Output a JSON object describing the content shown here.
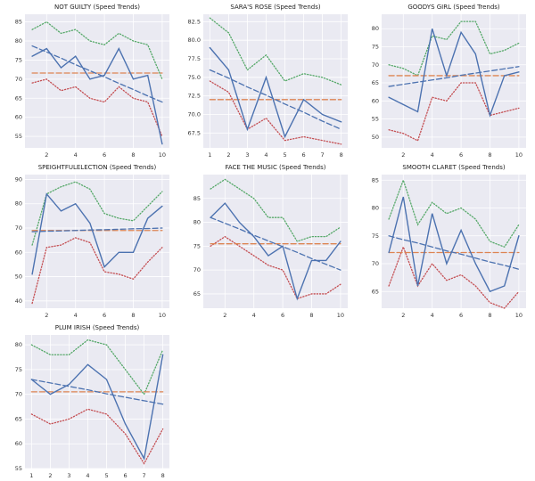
{
  "chart_data": [
    {
      "type": "line",
      "title": "NOT GUILTY (Speed Trends)",
      "x": [
        1,
        2,
        3,
        4,
        5,
        6,
        7,
        8,
        9,
        10
      ],
      "xlim": [
        0.5,
        10.5
      ],
      "ylim": [
        52,
        87
      ],
      "xticks": [
        2,
        4,
        6,
        8,
        10
      ],
      "yticks": [
        55,
        60,
        65,
        70,
        75,
        80,
        85
      ],
      "grid": true,
      "series": [
        {
          "color": "#55a868",
          "style": "dotted",
          "values": [
            83,
            85,
            82,
            83,
            80,
            79,
            82,
            80,
            79,
            70
          ]
        },
        {
          "color": "#c44e52",
          "style": "dotted",
          "values": [
            69,
            70,
            67,
            68,
            65,
            64,
            68,
            65,
            64,
            55
          ]
        },
        {
          "color": "#dd8452",
          "style": "dashed",
          "values": [
            71.6,
            71.6,
            71.6,
            71.6,
            71.6,
            71.6,
            71.6,
            71.6,
            71.6,
            71.6
          ]
        },
        {
          "color": "#4c72b0",
          "style": "dashed",
          "values": [
            78.7,
            77.1,
            75.5,
            73.8,
            72.2,
            70.6,
            68.9,
            67.3,
            65.6,
            64
          ]
        },
        {
          "color": "#4c72b0",
          "style": "solid",
          "values": [
            76,
            78,
            73,
            76,
            70,
            71,
            78,
            70,
            71,
            53
          ]
        }
      ]
    },
    {
      "type": "line",
      "title": "SARA'S ROSE (Speed Trends)",
      "x": [
        1,
        2,
        3,
        4,
        5,
        6,
        7,
        8
      ],
      "xlim": [
        0.65,
        8.35
      ],
      "ylim": [
        65.5,
        83.5
      ],
      "xticks": [
        1,
        2,
        3,
        4,
        5,
        6,
        7,
        8
      ],
      "yticks": [
        67.5,
        {
          "value": 70,
          "label": "70.0"
        },
        72.5,
        {
          "value": 75,
          "label": "75.0"
        },
        77.5,
        {
          "value": 80,
          "label": "80.0"
        },
        82.5
      ],
      "grid": true,
      "series": [
        {
          "color": "#55a868",
          "style": "dotted",
          "values": [
            83,
            81,
            76,
            78,
            74.5,
            75.5,
            75,
            74
          ]
        },
        {
          "color": "#c44e52",
          "style": "dotted",
          "values": [
            74.5,
            73,
            68,
            69.5,
            66.5,
            67,
            66.5,
            66
          ]
        },
        {
          "color": "#dd8452",
          "style": "dashed",
          "values": [
            72,
            72,
            72,
            72,
            72,
            72,
            72,
            72
          ]
        },
        {
          "color": "#4c72b0",
          "style": "dashed",
          "values": [
            76,
            74.9,
            73.7,
            72.6,
            71.4,
            70.3,
            69.1,
            68
          ]
        },
        {
          "color": "#4c72b0",
          "style": "solid",
          "values": [
            79,
            76,
            68,
            75,
            67,
            72,
            70,
            69
          ]
        }
      ]
    },
    {
      "type": "line",
      "title": "GOODYS GIRL (Speed Trends)",
      "x": [
        1,
        2,
        3,
        4,
        5,
        6,
        7,
        8,
        9,
        10
      ],
      "xlim": [
        0.5,
        10.5
      ],
      "ylim": [
        47,
        84
      ],
      "xticks": [
        2,
        4,
        6,
        8,
        10
      ],
      "yticks": [
        50,
        55,
        60,
        65,
        70,
        75,
        80
      ],
      "grid": true,
      "series": [
        {
          "color": "#55a868",
          "style": "dotted",
          "values": [
            70,
            69,
            67,
            78,
            77,
            82,
            82,
            73,
            74,
            76
          ]
        },
        {
          "color": "#c44e52",
          "style": "dotted",
          "values": [
            52,
            51,
            49,
            61,
            60,
            65,
            65,
            56,
            57,
            58
          ]
        },
        {
          "color": "#dd8452",
          "style": "dashed",
          "values": [
            67,
            67,
            67,
            67,
            67,
            67,
            67,
            67,
            67,
            67
          ]
        },
        {
          "color": "#4c72b0",
          "style": "dashed",
          "values": [
            64,
            64.6,
            65.2,
            65.8,
            66.4,
            67.1,
            67.7,
            68.3,
            68.9,
            69.5
          ]
        },
        {
          "color": "#4c72b0",
          "style": "solid",
          "values": [
            61,
            59,
            57,
            80,
            67,
            79,
            73,
            56,
            67,
            68
          ]
        }
      ]
    },
    {
      "type": "line",
      "title": "SPEIGHTFULELECTION (Speed Trends)",
      "x": [
        1,
        2,
        3,
        4,
        5,
        6,
        7,
        8,
        9,
        10
      ],
      "xlim": [
        0.5,
        10.5
      ],
      "ylim": [
        37,
        92
      ],
      "xticks": [
        2,
        4,
        6,
        8,
        10
      ],
      "yticks": [
        40,
        50,
        60,
        70,
        80,
        90
      ],
      "grid": true,
      "series": [
        {
          "color": "#55a868",
          "style": "dotted",
          "values": [
            63,
            84,
            87,
            89,
            86,
            76,
            74,
            73,
            79,
            85
          ]
        },
        {
          "color": "#c44e52",
          "style": "dotted",
          "values": [
            39,
            62,
            63,
            66,
            64,
            52,
            51,
            49,
            56,
            62
          ]
        },
        {
          "color": "#dd8452",
          "style": "dashed",
          "values": [
            69,
            69,
            69,
            69,
            69,
            69,
            69,
            69,
            69,
            69
          ]
        },
        {
          "color": "#4c72b0",
          "style": "dashed",
          "values": [
            68.5,
            68.7,
            68.8,
            69,
            69.2,
            69.3,
            69.5,
            69.7,
            69.8,
            70
          ]
        },
        {
          "color": "#4c72b0",
          "style": "solid",
          "values": [
            51,
            84,
            77,
            80,
            72,
            54,
            60,
            60,
            74,
            79
          ]
        }
      ]
    },
    {
      "type": "line",
      "title": "FACE THE MUSIC (Speed Trends)",
      "x": [
        1,
        2,
        3,
        4,
        5,
        6,
        7,
        8,
        9,
        10
      ],
      "xlim": [
        0.5,
        10.5
      ],
      "ylim": [
        62,
        90
      ],
      "xticks": [
        2,
        4,
        6,
        8,
        10
      ],
      "yticks": [
        65,
        70,
        75,
        80,
        85
      ],
      "grid": true,
      "series": [
        {
          "color": "#55a868",
          "style": "dotted",
          "values": [
            87,
            89,
            87,
            85,
            81,
            81,
            76,
            77,
            77,
            79
          ]
        },
        {
          "color": "#c44e52",
          "style": "dotted",
          "values": [
            75,
            77,
            75,
            73,
            71,
            70,
            64,
            65,
            65,
            67
          ]
        },
        {
          "color": "#dd8452",
          "style": "dashed",
          "values": [
            75.5,
            75.5,
            75.5,
            75.5,
            75.5,
            75.5,
            75.5,
            75.5,
            75.5,
            75.5
          ]
        },
        {
          "color": "#4c72b0",
          "style": "dashed",
          "values": [
            81,
            79.8,
            78.6,
            77.3,
            76.1,
            74.9,
            73.7,
            72.4,
            71.2,
            70
          ]
        },
        {
          "color": "#4c72b0",
          "style": "solid",
          "values": [
            81,
            84,
            80,
            77,
            73,
            75,
            64,
            72,
            72,
            76
          ]
        }
      ]
    },
    {
      "type": "line",
      "title": "SMOOTH CLARET (Speed Trends)",
      "x": [
        1,
        2,
        3,
        4,
        5,
        6,
        7,
        8,
        9,
        10
      ],
      "xlim": [
        0.5,
        10.5
      ],
      "ylim": [
        62,
        86
      ],
      "xticks": [
        2,
        4,
        6,
        8,
        10
      ],
      "yticks": [
        65,
        70,
        75,
        80,
        85
      ],
      "grid": true,
      "series": [
        {
          "color": "#55a868",
          "style": "dotted",
          "values": [
            78,
            85,
            77,
            81,
            79,
            80,
            78,
            74,
            73,
            77
          ]
        },
        {
          "color": "#c44e52",
          "style": "dotted",
          "values": [
            66,
            73,
            66,
            70,
            67,
            68,
            66,
            63,
            62,
            65
          ]
        },
        {
          "color": "#dd8452",
          "style": "dashed",
          "values": [
            72,
            72,
            72,
            72,
            72,
            72,
            72,
            72,
            72,
            72
          ]
        },
        {
          "color": "#4c72b0",
          "style": "dashed",
          "values": [
            75,
            74.3,
            73.7,
            73,
            72.3,
            71.7,
            71,
            70.3,
            69.7,
            69
          ]
        },
        {
          "color": "#4c72b0",
          "style": "solid",
          "values": [
            72,
            82,
            66,
            79,
            70,
            76,
            70,
            65,
            66,
            75
          ]
        }
      ]
    },
    {
      "type": "line",
      "title": "PLUM IRISH (Speed Trends)",
      "x": [
        1,
        2,
        3,
        4,
        5,
        6,
        7,
        8
      ],
      "xlim": [
        0.65,
        8.35
      ],
      "ylim": [
        55,
        82
      ],
      "xticks": [
        1,
        2,
        3,
        4,
        5,
        6,
        7,
        8
      ],
      "yticks": [
        55,
        60,
        65,
        70,
        75,
        80
      ],
      "grid": true,
      "series": [
        {
          "color": "#55a868",
          "style": "dotted",
          "values": [
            80,
            78,
            78,
            81,
            80,
            75,
            70,
            79
          ]
        },
        {
          "color": "#c44e52",
          "style": "dotted",
          "values": [
            66,
            64,
            65,
            67,
            66,
            62,
            56,
            63
          ]
        },
        {
          "color": "#dd8452",
          "style": "dashed",
          "values": [
            70.5,
            70.5,
            70.5,
            70.5,
            70.5,
            70.5,
            70.5,
            70.5
          ]
        },
        {
          "color": "#4c72b0",
          "style": "dashed",
          "values": [
            73,
            72.3,
            71.6,
            70.9,
            70.1,
            69.4,
            68.7,
            68
          ]
        },
        {
          "color": "#4c72b0",
          "style": "solid",
          "values": [
            73,
            70,
            72,
            76,
            73,
            64,
            57,
            78
          ]
        }
      ]
    }
  ]
}
